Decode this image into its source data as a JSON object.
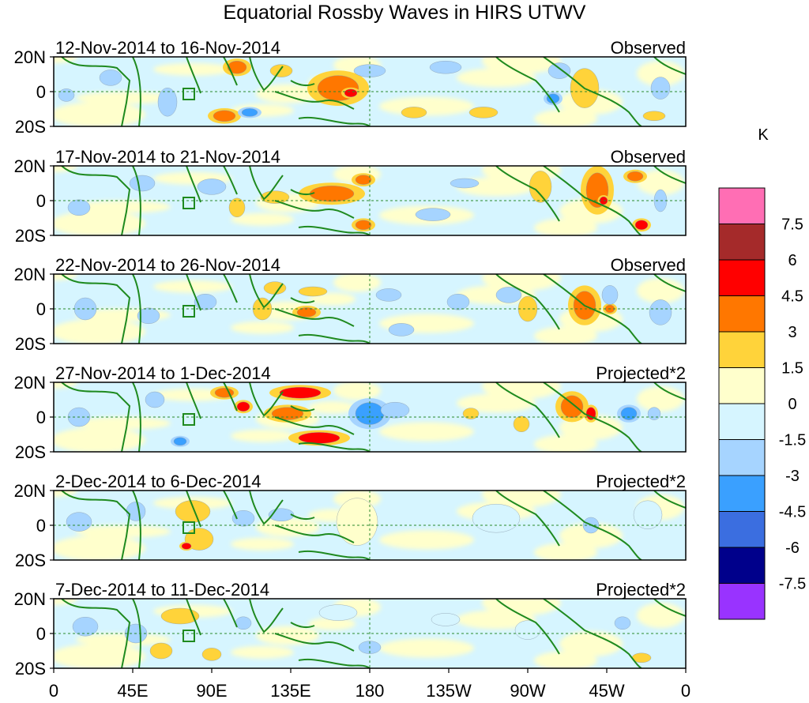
{
  "chart_data": {
    "type": "heatmap",
    "title": "Equatorial Rossby Waves in HIRS UTWV",
    "units": "K",
    "x_ticks": [
      "0",
      "45E",
      "90E",
      "135E",
      "180",
      "135W",
      "90W",
      "45W",
      "0"
    ],
    "y_ticks": [
      "20N",
      "0",
      "20S"
    ],
    "colorbar": {
      "label": "K",
      "levels": [
        "7.5",
        "6",
        "4.5",
        "3",
        "1.5",
        "0",
        "-1.5",
        "-3",
        "-4.5",
        "-6",
        "-7.5"
      ],
      "colors": [
        "#ff6eb4",
        "#a52a2a",
        "#ff0000",
        "#ff7700",
        "#ffd33a",
        "#ffffcc",
        "#d6f5ff",
        "#a6d4ff",
        "#3aa0ff",
        "#3b6ee0",
        "#00008b",
        "#9933ff"
      ]
    },
    "panels": [
      {
        "date_range": "12-Nov-2014 to 16-Nov-2014",
        "status": "Observed"
      },
      {
        "date_range": "17-Nov-2014 to 21-Nov-2014",
        "status": "Observed"
      },
      {
        "date_range": "22-Nov-2014 to 26-Nov-2014",
        "status": "Observed"
      },
      {
        "date_range": "27-Nov-2014 to 1-Dec-2014",
        "status": "Projected*2"
      },
      {
        "date_range": "2-Dec-2014 to 6-Dec-2014",
        "status": "Projected*2"
      },
      {
        "date_range": "7-Dec-2014 to 11-Dec-2014",
        "status": "Projected*2"
      }
    ]
  }
}
